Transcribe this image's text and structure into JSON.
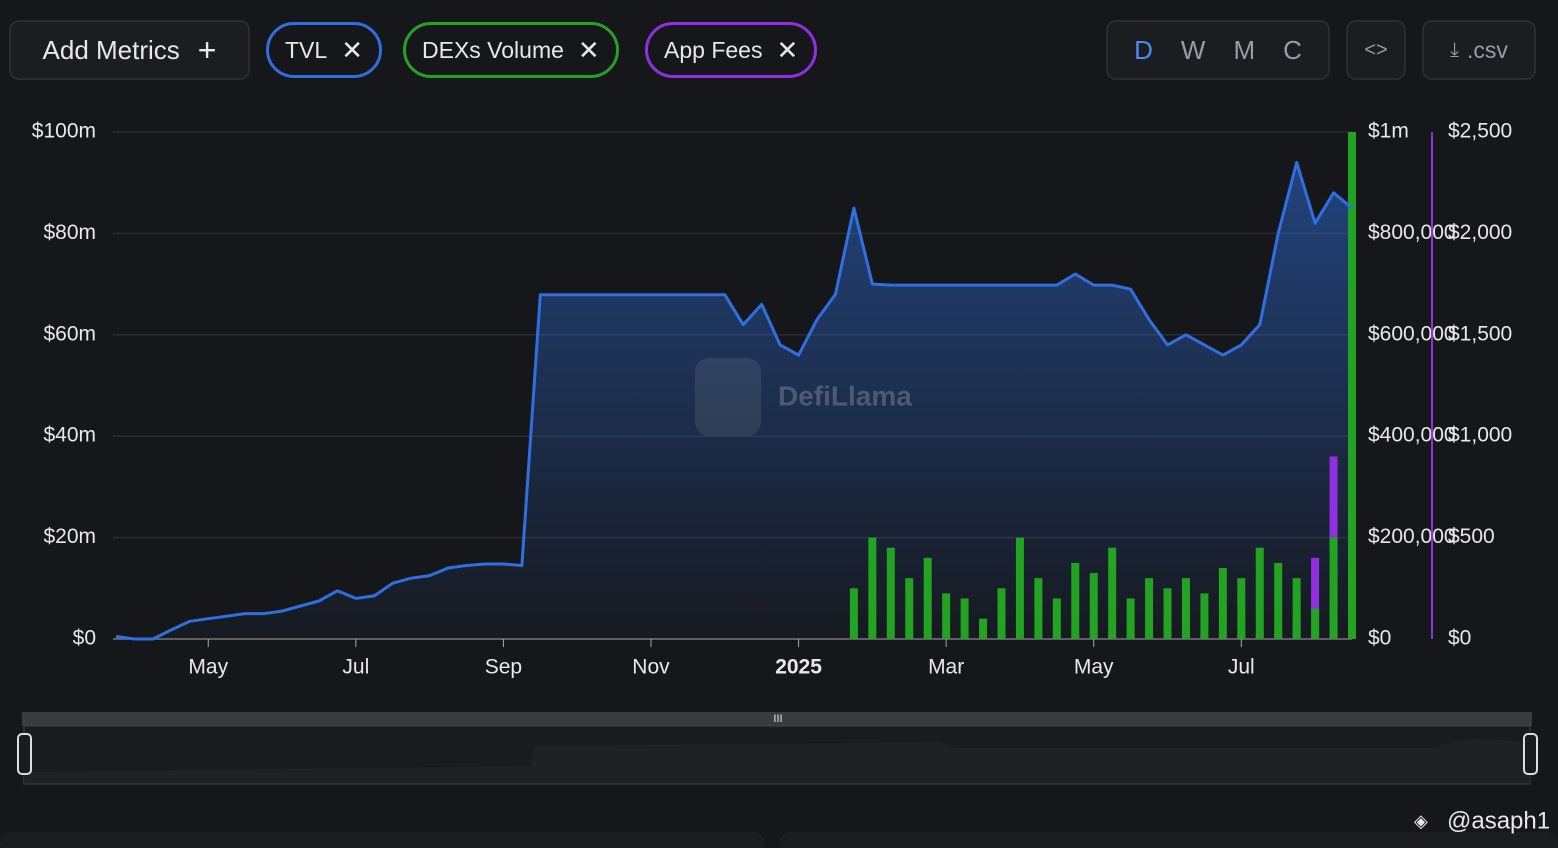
{
  "toolbar": {
    "add_metrics": "Add Metrics",
    "chips": [
      "TVL",
      "DEXs Volume",
      "App Fees"
    ],
    "periods": [
      "D",
      "W",
      "M",
      "C"
    ],
    "csv": ".csv"
  },
  "watermark": "DefiLlama",
  "credit": "@asaph1",
  "chart_data": {
    "type": "combo",
    "categories": [
      null,
      null,
      null,
      null,
      null,
      "May",
      null,
      null,
      null,
      null,
      null,
      null,
      null,
      "Jul",
      null,
      null,
      null,
      null,
      null,
      null,
      null,
      "Sep",
      null,
      null,
      null,
      null,
      null,
      null,
      null,
      "Nov",
      null,
      null,
      null,
      null,
      null,
      null,
      null,
      "2025",
      null,
      null,
      null,
      null,
      null,
      null,
      null,
      "Mar",
      null,
      null,
      null,
      null,
      null,
      null,
      null,
      "May",
      null,
      null,
      null,
      null,
      null,
      null,
      null,
      "Jul",
      null,
      null,
      null,
      null,
      null,
      null
    ],
    "ylim": [
      0,
      100
    ],
    "yticks": [
      {
        "value": 0,
        "label": "$0"
      },
      {
        "value": 20,
        "label": "$20m"
      },
      {
        "value": 40,
        "label": "$40m"
      },
      {
        "value": 60,
        "label": "$60m"
      },
      {
        "value": 80,
        "label": "$80m"
      },
      {
        "value": 100,
        "label": "$100m"
      }
    ],
    "y2lim": [
      0,
      1000000
    ],
    "y2ticks": [
      {
        "value": 0,
        "label": "$0"
      },
      {
        "value": 200000,
        "label": "$200,000"
      },
      {
        "value": 400000,
        "label": "$400,000"
      },
      {
        "value": 600000,
        "label": "$600,000"
      },
      {
        "value": 800000,
        "label": "$800,000"
      },
      {
        "value": 1000000,
        "label": "$1m"
      }
    ],
    "y3lim": [
      0,
      2500
    ],
    "y3ticks": [
      {
        "value": 0,
        "label": "$0"
      },
      {
        "value": 500,
        "label": "$500"
      },
      {
        "value": 1000,
        "label": "$1,000"
      },
      {
        "value": 1500,
        "label": "$1,500"
      },
      {
        "value": 2000,
        "label": "$2,000"
      },
      {
        "value": 2500,
        "label": "$2,500"
      }
    ],
    "grid": true,
    "series": [
      {
        "name": "TVL",
        "type": "line",
        "color": "#2f6fe0",
        "axis": "y",
        "values": [
          0.5,
          0,
          0,
          1.8,
          3.5,
          4,
          4.5,
          5,
          5,
          5.5,
          6.5,
          7.5,
          9.5,
          8,
          8.5,
          11,
          12,
          12.5,
          14,
          14.5,
          14.8,
          14.8,
          14.5,
          67.9,
          67.9,
          67.9,
          67.9,
          67.9,
          67.9,
          67.9,
          67.9,
          67.9,
          67.9,
          67.9,
          62,
          66,
          58,
          56,
          63,
          68,
          85,
          70,
          69.8,
          69.8,
          69.8,
          69.8,
          69.8,
          69.8,
          69.8,
          69.8,
          69.8,
          69.8,
          72,
          69.8,
          69.8,
          69,
          63,
          58,
          60,
          58,
          56,
          58,
          62,
          80,
          94,
          82,
          88,
          85
        ]
      },
      {
        "name": "App Fees",
        "type": "bar",
        "color": "#8f2fe0",
        "axis": "y3",
        "values": [
          null,
          null,
          null,
          null,
          null,
          null,
          null,
          null,
          null,
          null,
          null,
          null,
          null,
          null,
          null,
          null,
          null,
          null,
          null,
          null,
          null,
          null,
          null,
          null,
          null,
          null,
          null,
          null,
          null,
          null,
          null,
          null,
          null,
          null,
          null,
          null,
          null,
          null,
          null,
          null,
          null,
          null,
          null,
          null,
          null,
          null,
          null,
          null,
          null,
          null,
          null,
          20,
          20,
          20,
          20,
          20,
          20,
          20,
          20,
          20,
          20,
          20,
          30,
          30,
          100,
          400,
          900,
          2400
        ]
      },
      {
        "name": "DEXs Volume",
        "type": "bar",
        "color": "#22a322",
        "axis": "y2",
        "values": [
          null,
          null,
          null,
          null,
          null,
          null,
          null,
          null,
          null,
          null,
          null,
          null,
          null,
          null,
          null,
          null,
          null,
          null,
          null,
          null,
          null,
          null,
          null,
          null,
          null,
          null,
          null,
          null,
          null,
          null,
          null,
          null,
          null,
          null,
          null,
          null,
          null,
          null,
          null,
          null,
          100000,
          200000,
          180000,
          120000,
          160000,
          90000,
          80000,
          40000,
          100000,
          200000,
          120000,
          80000,
          150000,
          130000,
          180000,
          80000,
          120000,
          100000,
          120000,
          90000,
          140000,
          120000,
          180000,
          150000,
          120000,
          60000,
          200000,
          1000000
        ]
      }
    ]
  }
}
